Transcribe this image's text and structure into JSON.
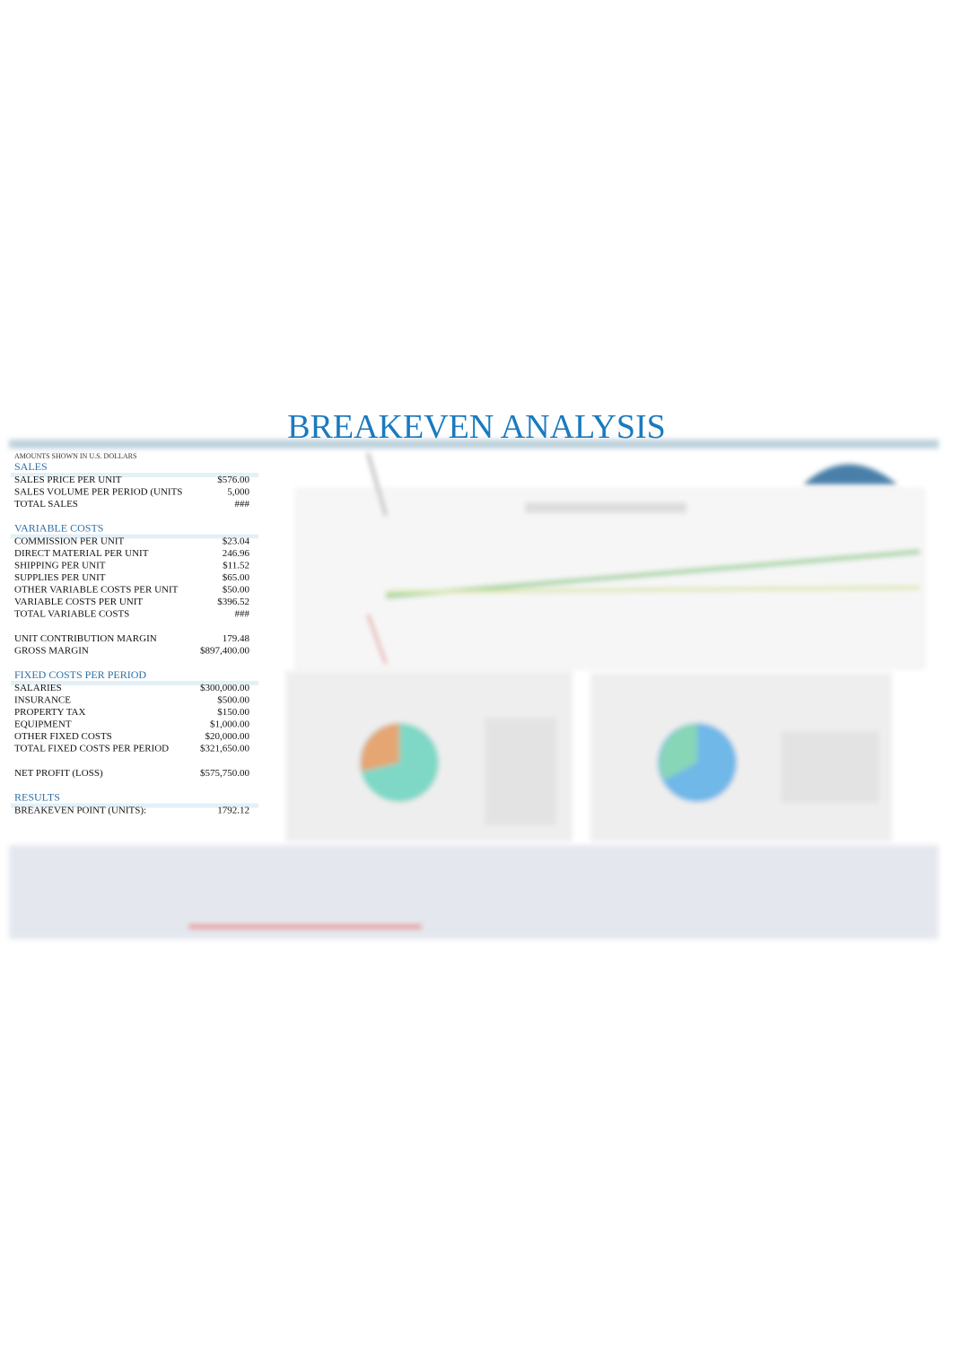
{
  "header": {
    "title": "BREAKEVEN ANALYSIS",
    "note": "AMOUNTS SHOWN IN U.S. DOLLARS"
  },
  "groups": [
    {
      "title": "SALES",
      "rows": [
        {
          "label": "SALES PRICE PER UNIT",
          "value": "$576.00"
        },
        {
          "label": "SALES VOLUME PER PERIOD (UNITS",
          "value": "5,000"
        },
        {
          "label": "TOTAL SALES",
          "value": "###"
        }
      ]
    },
    {
      "title": "VARIABLE COSTS",
      "rows": [
        {
          "label": "COMMISSION PER UNIT",
          "value": "$23.04"
        },
        {
          "label": "DIRECT MATERIAL PER UNIT",
          "value": "246.96"
        },
        {
          "label": "SHIPPING PER UNIT",
          "value": "$11.52"
        },
        {
          "label": "SUPPLIES PER UNIT",
          "value": "$65.00"
        },
        {
          "label": "OTHER VARIABLE COSTS PER UNIT",
          "value": "$50.00"
        },
        {
          "label": "VARIABLE COSTS PER UNIT",
          "value": "$396.52"
        },
        {
          "label": "TOTAL VARIABLE COSTS",
          "value": "###"
        }
      ]
    },
    {
      "rows": [
        {
          "label": "UNIT CONTRIBUTION MARGIN",
          "value": "179.48"
        },
        {
          "label": "GROSS MARGIN",
          "value": "$897,400.00"
        }
      ]
    },
    {
      "title": "FIXED COSTS PER PERIOD",
      "rows": [
        {
          "label": "SALARIES",
          "value": "$300,000.00"
        },
        {
          "label": "INSURANCE",
          "value": "$500.00"
        },
        {
          "label": "PROPERTY TAX",
          "value": "$150.00"
        },
        {
          "label": "EQUIPMENT",
          "value": "$1,000.00"
        },
        {
          "label": "OTHER FIXED COSTS",
          "value": "$20,000.00"
        },
        {
          "label": "TOTAL FIXED COSTS PER PERIOD",
          "value": "$321,650.00"
        }
      ]
    },
    {
      "rows": [
        {
          "label": "NET PROFIT (LOSS)",
          "value": "$575,750.00"
        }
      ]
    },
    {
      "title": "RESULTS",
      "rows": [
        {
          "label": "BREAKEVEN POINT (UNITS):",
          "value": "1792.12"
        }
      ]
    }
  ]
}
